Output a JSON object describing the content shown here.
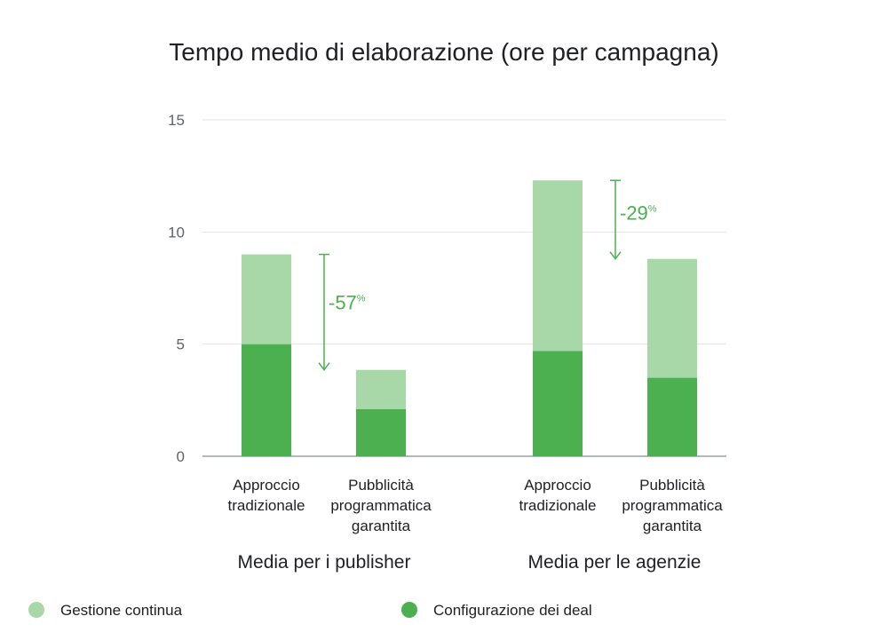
{
  "chart_data": {
    "type": "bar",
    "stacked": true,
    "title": "Tempo medio di elaborazione (ore per campagna)",
    "ylim": [
      0,
      15
    ],
    "yticks": [
      0,
      5,
      10,
      15
    ],
    "grid": true,
    "groups": [
      {
        "label": "Media per i publisher",
        "categories": [
          {
            "lines": [
              "Approccio",
              "tradizionale"
            ],
            "setup": 5.0,
            "ongoing": 4.0
          },
          {
            "lines": [
              "Pubblicità",
              "programmatica",
              "garantita"
            ],
            "setup": 2.1,
            "ongoing": 1.75
          }
        ],
        "annotation": {
          "from": 9.0,
          "to": 3.85,
          "value": "-57",
          "unit": "%"
        }
      },
      {
        "label": "Media per le agenzie",
        "categories": [
          {
            "lines": [
              "Approccio",
              "tradizionale"
            ],
            "setup": 4.7,
            "ongoing": 7.6
          },
          {
            "lines": [
              "Pubblicità",
              "programmatica",
              "garantita"
            ],
            "setup": 3.5,
            "ongoing": 5.3
          }
        ],
        "annotation": {
          "from": 12.3,
          "to": 8.8,
          "value": "-29",
          "unit": "%"
        }
      }
    ],
    "series": [
      {
        "key": "ongoing",
        "name": "Gestione continua",
        "color": "#a8d8a8"
      },
      {
        "key": "setup",
        "name": "Configurazione dei deal",
        "color": "#4caf50"
      }
    ],
    "legend": "bottom",
    "annotation_color": "#4caf50"
  }
}
